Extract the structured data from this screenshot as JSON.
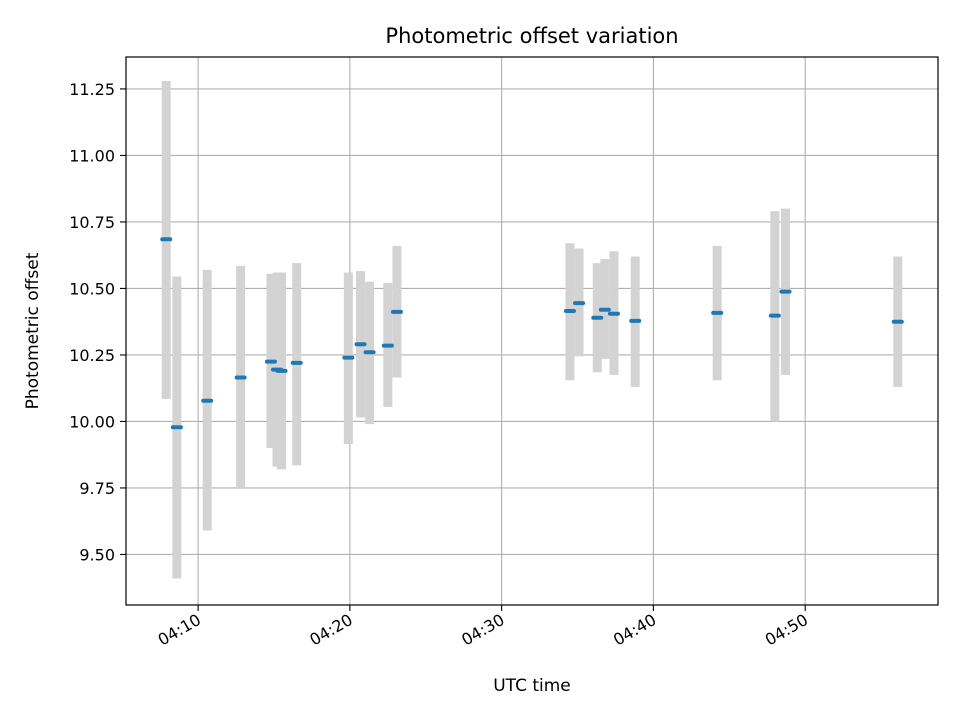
{
  "chart_data": {
    "type": "scatter",
    "title": "Photometric offset variation",
    "xlabel": "UTC time",
    "ylabel": "Photometric offset",
    "x_axis": "time (HH:MM UTC)",
    "xlim": [
      "04:05:15",
      "04:58:45"
    ],
    "ylim": [
      9.31,
      11.37
    ],
    "xticks": [
      "04:10",
      "04:20",
      "04:30",
      "04:40",
      "04:50"
    ],
    "yticks": [
      9.5,
      9.75,
      10.0,
      10.25,
      10.5,
      10.75,
      11.0,
      11.25
    ],
    "grid": true,
    "colors": {
      "point": "#1f77b4",
      "errorbar": "#d3d3d3",
      "grid": "#b0b0b0"
    },
    "points": [
      {
        "t": "04:07:54",
        "y": 10.685,
        "low": 10.085,
        "high": 11.28
      },
      {
        "t": "04:08:36",
        "y": 9.978,
        "low": 9.41,
        "high": 10.545
      },
      {
        "t": "04:10:36",
        "y": 10.078,
        "low": 9.59,
        "high": 10.57
      },
      {
        "t": "04:12:48",
        "y": 10.165,
        "low": 9.75,
        "high": 10.585
      },
      {
        "t": "04:14:48",
        "y": 10.225,
        "low": 9.9,
        "high": 10.555
      },
      {
        "t": "04:15:12",
        "y": 10.195,
        "low": 9.83,
        "high": 10.56
      },
      {
        "t": "04:15:30",
        "y": 10.19,
        "low": 9.82,
        "high": 10.56
      },
      {
        "t": "04:16:30",
        "y": 10.22,
        "low": 9.835,
        "high": 10.595
      },
      {
        "t": "04:19:54",
        "y": 10.24,
        "low": 9.915,
        "high": 10.56
      },
      {
        "t": "04:20:42",
        "y": 10.29,
        "low": 10.015,
        "high": 10.565
      },
      {
        "t": "04:21:18",
        "y": 10.26,
        "low": 9.99,
        "high": 10.525
      },
      {
        "t": "04:22:30",
        "y": 10.285,
        "low": 10.055,
        "high": 10.52
      },
      {
        "t": "04:23:06",
        "y": 10.412,
        "low": 10.165,
        "high": 10.66
      },
      {
        "t": "04:34:30",
        "y": 10.415,
        "low": 10.155,
        "high": 10.67
      },
      {
        "t": "04:35:06",
        "y": 10.445,
        "low": 10.245,
        "high": 10.65
      },
      {
        "t": "04:36:18",
        "y": 10.39,
        "low": 10.185,
        "high": 10.595
      },
      {
        "t": "04:36:48",
        "y": 10.42,
        "low": 10.235,
        "high": 10.61
      },
      {
        "t": "04:37:24",
        "y": 10.405,
        "low": 10.175,
        "high": 10.64
      },
      {
        "t": "04:38:48",
        "y": 10.378,
        "low": 10.13,
        "high": 10.62
      },
      {
        "t": "04:44:12",
        "y": 10.408,
        "low": 10.155,
        "high": 10.66
      },
      {
        "t": "04:48:00",
        "y": 10.398,
        "low": 10.0,
        "high": 10.79
      },
      {
        "t": "04:48:42",
        "y": 10.488,
        "low": 10.175,
        "high": 10.8
      },
      {
        "t": "04:56:06",
        "y": 10.375,
        "low": 10.13,
        "high": 10.62
      }
    ]
  }
}
